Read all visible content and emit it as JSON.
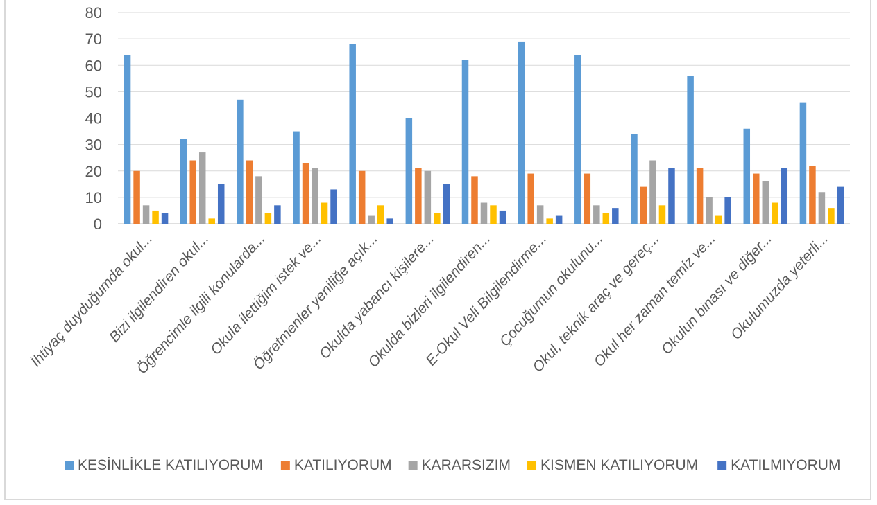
{
  "chart_data": {
    "type": "bar",
    "title": "",
    "xlabel": "",
    "ylabel": "",
    "ylim": [
      0,
      80
    ],
    "yticks": [
      0,
      10,
      20,
      30,
      40,
      50,
      60,
      70,
      80
    ],
    "grid": true,
    "legend_position": "bottom",
    "categories": [
      "İhtiyaç duyduğumda okul...",
      "Bizi ilgilendiren okul...",
      "Öğrencimle ilgili konularda...",
      "Okula ilettiğim istek ve...",
      "Öğretmenler yeniliğe açık...",
      "Okulda yabancı kişilere...",
      "Okulda bizleri ilgilendiren...",
      "E-Okul Veli Bilgilendirme...",
      "Çocuğumun okulunu...",
      "Okul, teknik araç ve gereç...",
      "Okul her zaman temiz ve...",
      "Okulun binası ve diğer...",
      "Okulumuzda yeterli..."
    ],
    "series": [
      {
        "name": "KESİNLİKLE KATILIYORUM",
        "color": "#5B9BD5",
        "values": [
          64,
          32,
          47,
          35,
          68,
          40,
          62,
          69,
          64,
          34,
          56,
          36,
          46
        ]
      },
      {
        "name": "KATILIYORUM",
        "color": "#ED7D31",
        "values": [
          20,
          24,
          24,
          23,
          20,
          21,
          18,
          19,
          19,
          14,
          21,
          19,
          22
        ]
      },
      {
        "name": "KARARSIZIM",
        "color": "#A5A5A5",
        "values": [
          7,
          27,
          18,
          21,
          3,
          20,
          8,
          7,
          7,
          24,
          10,
          16,
          12
        ]
      },
      {
        "name": "KISMEN KATILIYORUM",
        "color": "#FFC000",
        "values": [
          5,
          2,
          4,
          8,
          7,
          4,
          7,
          2,
          4,
          7,
          3,
          8,
          6
        ]
      },
      {
        "name": "KATILMIYORUM",
        "color": "#4472C4",
        "values": [
          4,
          15,
          7,
          13,
          2,
          15,
          5,
          3,
          6,
          21,
          10,
          21,
          14
        ]
      }
    ]
  }
}
